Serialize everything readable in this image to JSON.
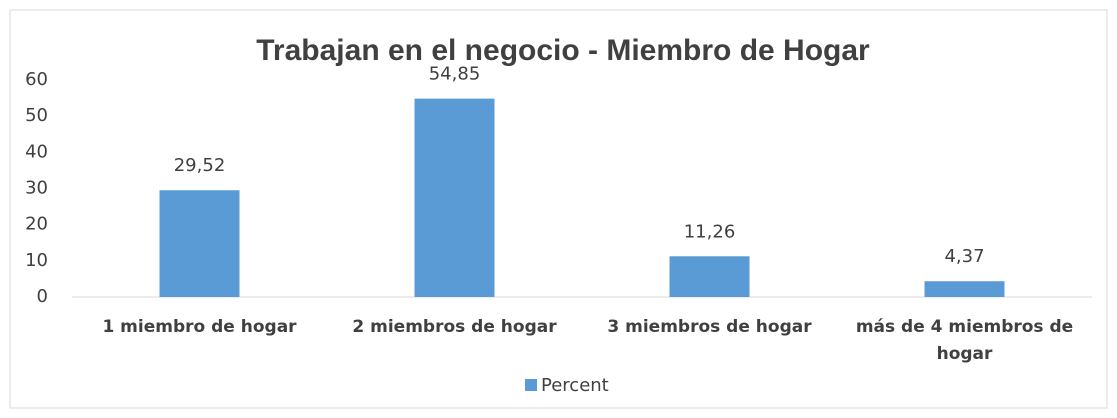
{
  "chart_data": {
    "type": "bar",
    "title": "Trabajan en el negocio - Miembro de Hogar",
    "categories": [
      "1 miembro de hogar",
      "2 miembros de hogar",
      "3 miembros de hogar",
      "más de 4 miembros de hogar"
    ],
    "series": [
      {
        "name": "Percent",
        "color": "#5b9bd5",
        "values": [
          29.52,
          54.85,
          11.26,
          4.37
        ],
        "value_labels": [
          "29,52",
          "54,85",
          "11,26",
          "4,37"
        ]
      }
    ],
    "ylim": [
      0,
      60
    ],
    "yticks": [
      0,
      10,
      20,
      30,
      40,
      50,
      60
    ],
    "grid": false,
    "legend": "bottom"
  }
}
